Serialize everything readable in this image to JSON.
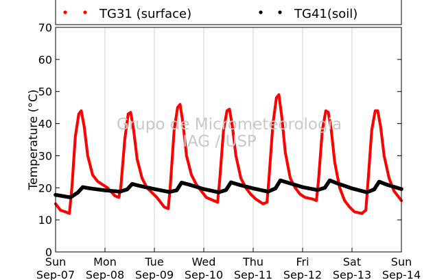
{
  "chart_data": {
    "type": "scatter",
    "title": "",
    "xlabel": "",
    "ylabel": "Temperature (°C)",
    "ylim": [
      0,
      70
    ],
    "xlim": [
      0,
      7
    ],
    "yticks": [
      0,
      10,
      20,
      30,
      40,
      50,
      60,
      70
    ],
    "xticks": [
      {
        "x": 0,
        "day": "Sun",
        "date": "Sep-07"
      },
      {
        "x": 1,
        "day": "Mon",
        "date": "Sep-08"
      },
      {
        "x": 2,
        "day": "Tue",
        "date": "Sep-09"
      },
      {
        "x": 3,
        "day": "Wed",
        "date": "Sep-10"
      },
      {
        "x": 4,
        "day": "Thu",
        "date": "Sep-11"
      },
      {
        "x": 5,
        "day": "Fri",
        "date": "Sep-12"
      },
      {
        "x": 6,
        "day": "Sat",
        "date": "Sep-13"
      },
      {
        "x": 7,
        "day": "Sun",
        "date": "Sep-14"
      }
    ],
    "grid": "vertical",
    "legend_position": "top",
    "watermark": [
      "Grupo de Micrometeorologia",
      "IAG / USP"
    ],
    "series": [
      {
        "name": "TG31 (surface)",
        "color": "#ff0000",
        "x": [
          0.0,
          0.1,
          0.2,
          0.28,
          0.33,
          0.4,
          0.47,
          0.52,
          0.58,
          0.65,
          0.75,
          0.85,
          0.95,
          1.05,
          1.2,
          1.28,
          1.32,
          1.4,
          1.47,
          1.52,
          1.58,
          1.65,
          1.75,
          1.85,
          1.95,
          2.05,
          2.2,
          2.28,
          2.32,
          2.4,
          2.47,
          2.52,
          2.58,
          2.65,
          2.75,
          2.85,
          2.95,
          3.05,
          3.2,
          3.28,
          3.32,
          3.4,
          3.47,
          3.52,
          3.58,
          3.65,
          3.75,
          3.85,
          3.95,
          4.05,
          4.2,
          4.28,
          4.32,
          4.4,
          4.47,
          4.52,
          4.58,
          4.65,
          4.75,
          4.85,
          4.95,
          5.05,
          5.2,
          5.28,
          5.32,
          5.4,
          5.47,
          5.52,
          5.58,
          5.65,
          5.75,
          5.85,
          5.95,
          6.05,
          6.2,
          6.28,
          6.32,
          6.4,
          6.47,
          6.52,
          6.58,
          6.65,
          6.75,
          6.85,
          6.95,
          7.0
        ],
        "y": [
          15,
          13,
          12.5,
          12,
          20,
          36,
          43,
          44,
          39,
          30,
          24,
          22,
          21,
          20,
          17.5,
          17,
          20,
          35,
          43,
          43.5,
          38,
          29,
          23,
          20,
          18.5,
          17,
          14,
          13.5,
          20,
          38,
          45,
          46,
          40,
          30,
          24,
          21,
          19,
          17,
          16,
          15.5,
          22,
          38,
          44,
          44.5,
          39,
          30,
          23,
          20,
          18,
          16.5,
          15,
          15.5,
          23,
          40,
          48,
          49,
          42,
          31,
          23,
          20,
          18,
          17,
          16.5,
          16,
          22,
          38,
          44,
          43.5,
          38,
          28,
          20,
          16,
          14,
          12.5,
          12,
          13,
          21,
          38,
          44,
          44,
          39,
          30,
          23,
          19,
          17,
          16
        ]
      },
      {
        "name": "TG41(soil)",
        "color": "#000000",
        "x": [
          0.0,
          0.15,
          0.3,
          0.45,
          0.55,
          0.7,
          1.0,
          1.3,
          1.45,
          1.55,
          1.7,
          2.0,
          2.3,
          2.45,
          2.55,
          2.7,
          3.0,
          3.3,
          3.45,
          3.55,
          3.7,
          4.0,
          4.3,
          4.45,
          4.55,
          4.7,
          5.0,
          5.3,
          5.45,
          5.55,
          5.7,
          6.0,
          6.3,
          6.45,
          6.55,
          6.7,
          7.0
        ],
        "y": [
          17.8,
          17.4,
          17.0,
          18.5,
          20.2,
          19.8,
          19.2,
          18.8,
          19.5,
          21.2,
          20.6,
          19.6,
          18.7,
          19.2,
          21.6,
          21.0,
          19.6,
          18.6,
          19.3,
          21.7,
          21.0,
          19.8,
          18.8,
          19.8,
          22.3,
          21.6,
          20.2,
          19.3,
          20.0,
          22.3,
          21.4,
          19.8,
          18.6,
          19.5,
          21.9,
          21.0,
          19.6
        ]
      }
    ]
  }
}
